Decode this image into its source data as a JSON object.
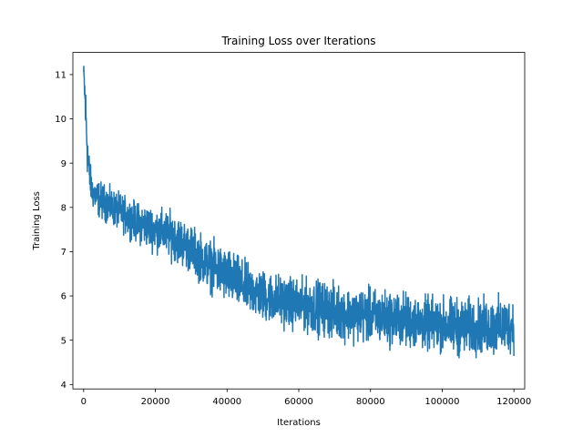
{
  "chart_data": {
    "type": "line",
    "title": "Training Loss over Iterations",
    "xlabel": "Iterations",
    "ylabel": "Training Loss",
    "xlim": [
      -3000,
      123000
    ],
    "ylim": [
      3.9,
      11.5
    ],
    "xticks": [
      0,
      20000,
      40000,
      60000,
      80000,
      100000,
      120000
    ],
    "yticks": [
      4,
      5,
      6,
      7,
      8,
      9,
      10,
      11
    ],
    "grid": false,
    "legend": "none",
    "color": "#1f77b4",
    "series": [
      {
        "name": "",
        "note_on_values": "noisy per-iteration loss; given as approximate envelope (x, lower, upper) read from the plot",
        "envelope": [
          [
            0,
            10.8,
            11.3
          ],
          [
            200,
            10.2,
            11.3
          ],
          [
            500,
            9.4,
            11.1
          ],
          [
            800,
            8.9,
            10.6
          ],
          [
            1200,
            8.4,
            9.8
          ],
          [
            1800,
            8.1,
            9.1
          ],
          [
            2500,
            7.9,
            8.8
          ],
          [
            4000,
            7.7,
            8.7
          ],
          [
            6000,
            7.6,
            8.6
          ],
          [
            10000,
            7.4,
            8.4
          ],
          [
            15000,
            7.1,
            8.2
          ],
          [
            20000,
            6.9,
            8.1
          ],
          [
            25000,
            6.7,
            8.0
          ],
          [
            30000,
            6.4,
            7.7
          ],
          [
            35000,
            6.0,
            7.4
          ],
          [
            40000,
            5.7,
            7.2
          ],
          [
            45000,
            5.5,
            6.9
          ],
          [
            50000,
            5.3,
            6.7
          ],
          [
            55000,
            5.2,
            6.6
          ],
          [
            60000,
            5.1,
            6.5
          ],
          [
            65000,
            5.0,
            6.5
          ],
          [
            70000,
            4.9,
            6.4
          ],
          [
            75000,
            4.85,
            6.3
          ],
          [
            80000,
            4.8,
            6.3
          ],
          [
            85000,
            4.75,
            6.25
          ],
          [
            90000,
            4.7,
            6.2
          ],
          [
            95000,
            4.65,
            6.1
          ],
          [
            100000,
            4.6,
            6.1
          ],
          [
            105000,
            4.5,
            6.1
          ],
          [
            110000,
            4.55,
            6.05
          ],
          [
            115000,
            4.5,
            6.1
          ],
          [
            120000,
            4.6,
            6.1
          ]
        ]
      }
    ]
  }
}
